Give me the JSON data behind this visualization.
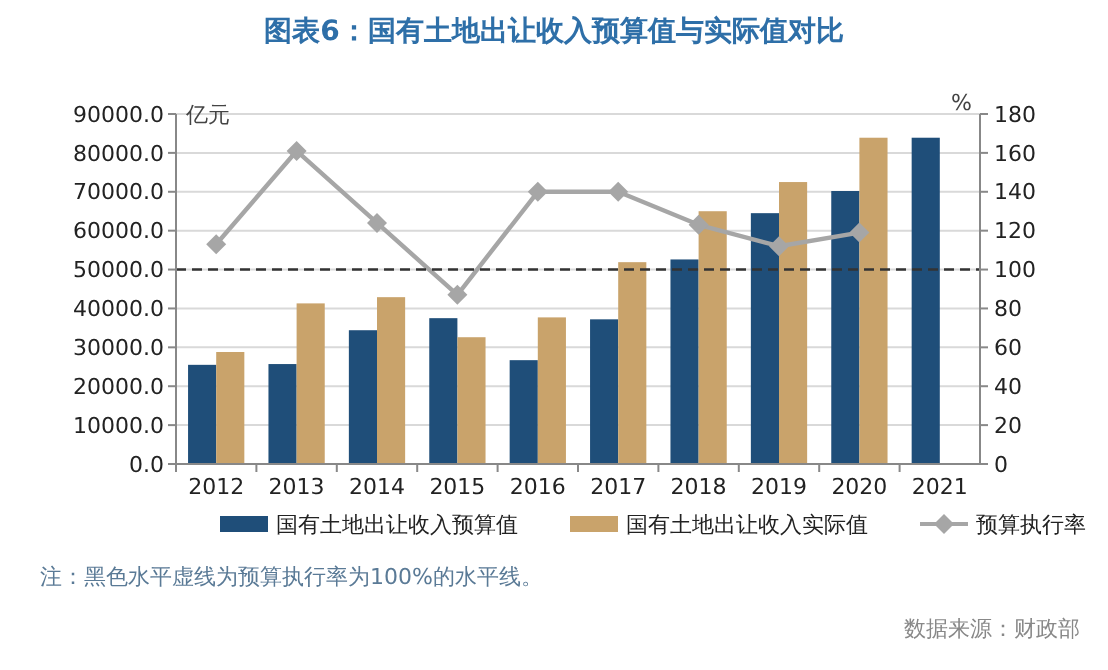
{
  "chart_data": {
    "type": "bar",
    "title": "图表6：国有土地出让收入预算值与实际值对比",
    "categories": [
      "2012",
      "2013",
      "2014",
      "2015",
      "2016",
      "2017",
      "2018",
      "2019",
      "2020",
      "2021"
    ],
    "series": [
      {
        "name": "国有土地出让收入预算值",
        "color": "#1f4e79",
        "values": [
          25500,
          25700,
          34400,
          37500,
          26700,
          37200,
          52600,
          64500,
          70200,
          83900
        ]
      },
      {
        "name": "国有土地出让收入实际值",
        "color": "#c9a36b",
        "values": [
          28800,
          41300,
          42900,
          32600,
          37700,
          51900,
          65000,
          72500,
          83900,
          null
        ]
      },
      {
        "name": "预算执行率",
        "type": "line",
        "axis": "y2",
        "color": "#a6a6a6",
        "marker": "diamond",
        "values": [
          113,
          161,
          124,
          87,
          140,
          140,
          123,
          112,
          119,
          null
        ]
      }
    ],
    "ylabel": "亿元",
    "y2label": "%",
    "ylim": [
      0,
      90000
    ],
    "yticks": [
      {
        "value": 0,
        "label": "0.0"
      },
      {
        "value": 10000,
        "label": "10000.0"
      },
      {
        "value": 20000,
        "label": "20000.0"
      },
      {
        "value": 30000,
        "label": "30000.0"
      },
      {
        "value": 40000,
        "label": "40000.0"
      },
      {
        "value": 50000,
        "label": "50000.0"
      },
      {
        "value": 60000,
        "label": "60000.0"
      },
      {
        "value": 70000,
        "label": "70000.0"
      },
      {
        "value": 80000,
        "label": "80000.0"
      },
      {
        "value": 90000,
        "label": "90000.0"
      }
    ],
    "y2lim": [
      0,
      180
    ],
    "y2ticks": [
      0,
      20,
      40,
      60,
      80,
      100,
      120,
      140,
      160,
      180
    ],
    "ref_lines": [
      {
        "axis": "y2",
        "value": 100,
        "color": "#333333",
        "line_style": "dashed"
      }
    ],
    "grid": "y",
    "legend": "bottom",
    "annotations": [
      "注：黑色水平虚线为预算执行率为100%的水平线。",
      "数据来源：财政部"
    ]
  }
}
